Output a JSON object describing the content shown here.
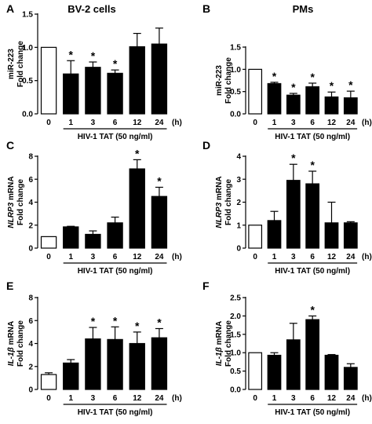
{
  "chart_data": [
    {
      "panel": "A",
      "title": "BV-2 cells",
      "type": "bar",
      "ylabel_lines": [
        {
          "text": "miR-223",
          "italic": false
        },
        {
          "text": "Fold change",
          "italic": false
        }
      ],
      "categories": [
        "0",
        "1",
        "3",
        "6",
        "12",
        "24"
      ],
      "values": [
        1.0,
        0.6,
        0.7,
        0.61,
        1.01,
        1.05
      ],
      "errors": [
        0,
        0.2,
        0.08,
        0.05,
        0.2,
        0.24
      ],
      "significant": [
        false,
        true,
        true,
        true,
        false,
        false
      ],
      "ylim": [
        0,
        1.5
      ],
      "yticks": [
        "0.0",
        "0.5",
        "1.0",
        "1.5"
      ],
      "xlabel": "HIV-1 TAT (50 ng/ml)",
      "x_unit": "(h)"
    },
    {
      "panel": "B",
      "title": "PMs",
      "type": "bar",
      "ylabel_lines": [
        {
          "text": "miR-223",
          "italic": false
        },
        {
          "text": "Fold change",
          "italic": false
        }
      ],
      "categories": [
        "0",
        "1",
        "3",
        "6",
        "12",
        "24"
      ],
      "values": [
        1.0,
        0.68,
        0.42,
        0.61,
        0.38,
        0.36
      ],
      "errors": [
        0,
        0.03,
        0.04,
        0.08,
        0.11,
        0.15
      ],
      "significant": [
        false,
        true,
        true,
        true,
        true,
        true
      ],
      "ylim": [
        0,
        1.5
      ],
      "yticks": [
        "0.0",
        "0.5",
        "1.0",
        "1.5"
      ],
      "xlabel": "HIV-1 TAT (50 ng/ml)",
      "x_unit": "(h)"
    },
    {
      "panel": "C",
      "title": "",
      "type": "bar",
      "ylabel_lines": [
        {
          "text": "NLRP3",
          "italic": true,
          "suffix": " mRNA"
        },
        {
          "text": "Fold change",
          "italic": false
        }
      ],
      "categories": [
        "0",
        "1",
        "3",
        "6",
        "12",
        "24"
      ],
      "values": [
        1.0,
        1.85,
        1.2,
        2.2,
        6.9,
        4.5
      ],
      "errors": [
        0,
        0.05,
        0.3,
        0.5,
        0.8,
        0.8
      ],
      "significant": [
        false,
        false,
        false,
        false,
        true,
        true
      ],
      "ylim": [
        0,
        8
      ],
      "yticks": [
        "0",
        "2",
        "4",
        "6",
        "8"
      ],
      "xlabel": "HIV-1 TAT (50 ng/ml)",
      "x_unit": "(h)"
    },
    {
      "panel": "D",
      "title": "",
      "type": "bar",
      "ylabel_lines": [
        {
          "text": "NLRP3",
          "italic": true,
          "suffix": " mRNA"
        },
        {
          "text": "Fold change",
          "italic": false
        }
      ],
      "categories": [
        "0",
        "1",
        "3",
        "6",
        "12",
        "24"
      ],
      "values": [
        1.0,
        1.2,
        2.95,
        2.8,
        1.1,
        1.1
      ],
      "errors": [
        0,
        0.4,
        0.7,
        0.55,
        0.9,
        0.05
      ],
      "significant": [
        false,
        false,
        true,
        true,
        false,
        false
      ],
      "ylim": [
        0,
        4
      ],
      "yticks": [
        "0",
        "1",
        "2",
        "3",
        "4"
      ],
      "xlabel": "HIV-1 TAT (50 ng/ml)",
      "x_unit": "(h)"
    },
    {
      "panel": "E",
      "title": "",
      "type": "bar",
      "ylabel_lines": [
        {
          "text": "IL-1β",
          "italic": true,
          "suffix": " mRNA"
        },
        {
          "text": "Fold change",
          "italic": false
        }
      ],
      "categories": [
        "0",
        "1",
        "3",
        "6",
        "12",
        "24"
      ],
      "values": [
        1.3,
        2.3,
        4.4,
        4.35,
        4.0,
        4.5
      ],
      "errors": [
        0.15,
        0.3,
        1.0,
        1.1,
        1.0,
        0.8
      ],
      "significant": [
        false,
        false,
        true,
        true,
        true,
        true
      ],
      "ylim": [
        0,
        8
      ],
      "yticks": [
        "0",
        "2",
        "4",
        "6",
        "8"
      ],
      "xlabel": "HIV-1 TAT (50 ng/ml)",
      "x_unit": "(h)"
    },
    {
      "panel": "F",
      "title": "",
      "type": "bar",
      "ylabel_lines": [
        {
          "text": "IL-1β",
          "italic": true,
          "suffix": " mRNA"
        },
        {
          "text": "Fold change",
          "italic": false
        }
      ],
      "categories": [
        "0",
        "1",
        "3",
        "6",
        "12",
        "24"
      ],
      "values": [
        1.0,
        0.93,
        1.35,
        1.9,
        0.93,
        0.6
      ],
      "errors": [
        0,
        0.07,
        0.45,
        0.1,
        0.02,
        0.1
      ],
      "significant": [
        false,
        false,
        false,
        true,
        false,
        false
      ],
      "ylim": [
        0,
        2.5
      ],
      "yticks": [
        "0.0",
        "0.5",
        "1.0",
        "1.5",
        "2.0",
        "2.5"
      ],
      "xlabel": "HIV-1 TAT (50 ng/ml)",
      "x_unit": "(h)"
    }
  ],
  "significance_marker": "*",
  "colors": {
    "control_bar": "#ffffff",
    "treated_bar": "#000000",
    "axis": "#000000"
  }
}
